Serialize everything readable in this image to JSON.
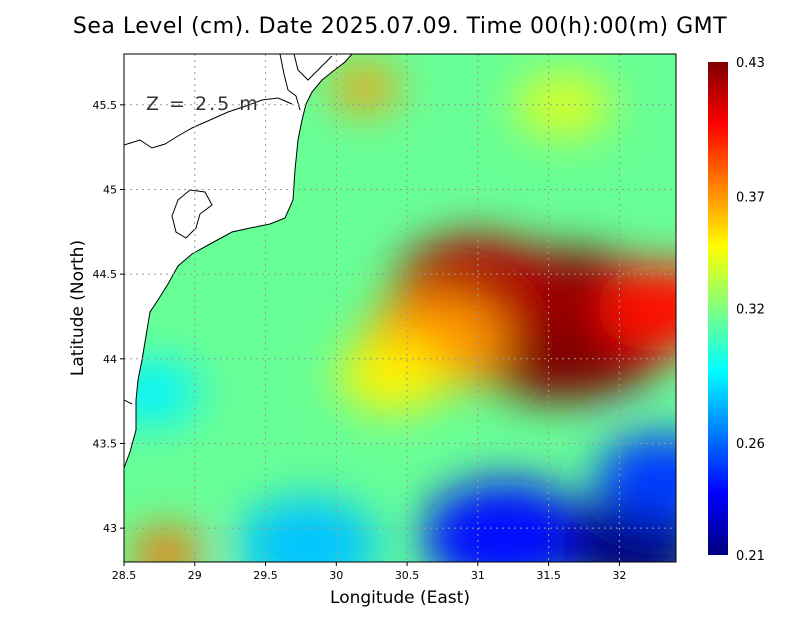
{
  "title": "Sea Level (cm). Date 2025.07.09. Time 00(h):00(m) GMT",
  "annotation": "Z = 2.5 m",
  "chart_data": {
    "type": "heatmap",
    "title": "Sea Level (cm). Date 2025.07.09. Time 00(h):00(m) GMT",
    "xlabel": "Longitude (East)",
    "ylabel": "Latitude (North)",
    "xlim": [
      28.5,
      32.4
    ],
    "ylim": [
      42.8,
      45.8
    ],
    "x_ticks": [
      "28.5",
      "29",
      "29.5",
      "30",
      "30.5",
      "31",
      "31.5",
      "32"
    ],
    "y_ticks": [
      "43",
      "43.5",
      "44",
      "44.5",
      "45",
      "45.5"
    ],
    "grid": true,
    "colorbar": {
      "min": 0.21,
      "max": 0.43,
      "ticks": [
        "0.43",
        "0.37",
        "0.32",
        "0.26",
        "0.21"
      ],
      "colormap": [
        "#00007f",
        "#0000ff",
        "#007fff",
        "#00ffff",
        "#7fff7f",
        "#ffff00",
        "#ff7f00",
        "#ff0000",
        "#7f0000"
      ]
    },
    "features": [
      {
        "lon": 31.6,
        "lat": 44.2,
        "value": 0.43
      },
      {
        "lon": 31.0,
        "lat": 44.4,
        "value": 0.42
      },
      {
        "lon": 32.3,
        "lat": 44.3,
        "value": 0.4
      },
      {
        "lon": 30.7,
        "lat": 44.1,
        "value": 0.37
      },
      {
        "lon": 30.4,
        "lat": 43.9,
        "value": 0.35
      },
      {
        "lon": 30.2,
        "lat": 45.6,
        "value": 0.37
      },
      {
        "lon": 31.6,
        "lat": 45.5,
        "value": 0.34
      },
      {
        "lon": 31.2,
        "lat": 42.95,
        "value": 0.24
      },
      {
        "lon": 32.1,
        "lat": 42.9,
        "value": 0.21
      },
      {
        "lon": 32.3,
        "lat": 43.3,
        "value": 0.25
      },
      {
        "lon": 29.8,
        "lat": 42.9,
        "value": 0.28
      },
      {
        "lon": 28.8,
        "lat": 42.85,
        "value": 0.38
      },
      {
        "lon": 28.7,
        "lat": 43.8,
        "value": 0.29
      }
    ],
    "background_value": 0.315
  }
}
